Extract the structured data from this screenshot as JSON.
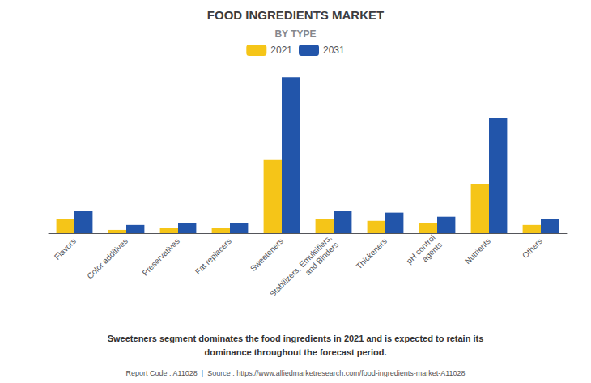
{
  "chart_data": {
    "type": "bar",
    "title": "FOOD INGREDIENTS MARKET",
    "subtitle": "BY TYPE",
    "categories": [
      "Flavors",
      "Color additives",
      "Preservatives",
      "Fat replacers",
      "Sweeteners",
      "Stabilizers, Emulsifiers,\nand Binders",
      "Thickeners",
      "pH control\nagents",
      "Nutrients",
      "Others"
    ],
    "series": [
      {
        "name": "2021",
        "color": "#F5C518",
        "values": [
          3.5,
          0.8,
          1.2,
          1.2,
          18.0,
          3.5,
          3.0,
          2.5,
          12.0,
          2.0
        ]
      },
      {
        "name": "2031",
        "color": "#2255AA",
        "values": [
          5.5,
          2.0,
          2.5,
          2.5,
          38.0,
          5.5,
          5.0,
          4.0,
          28.0,
          3.5
        ]
      }
    ],
    "ylim": [
      0,
      40
    ],
    "grid": false,
    "legend": "top",
    "tick_labels": "x",
    "annotations": [
      "Sweeteners segment dominates the food ingredients in 2021 and is expected to retain its\ndominance throughout the forecast period.",
      "Report Code : A11028  |  Source : https://www.alliedmarketresearch.com/food-ingredients-market-A11028"
    ]
  }
}
